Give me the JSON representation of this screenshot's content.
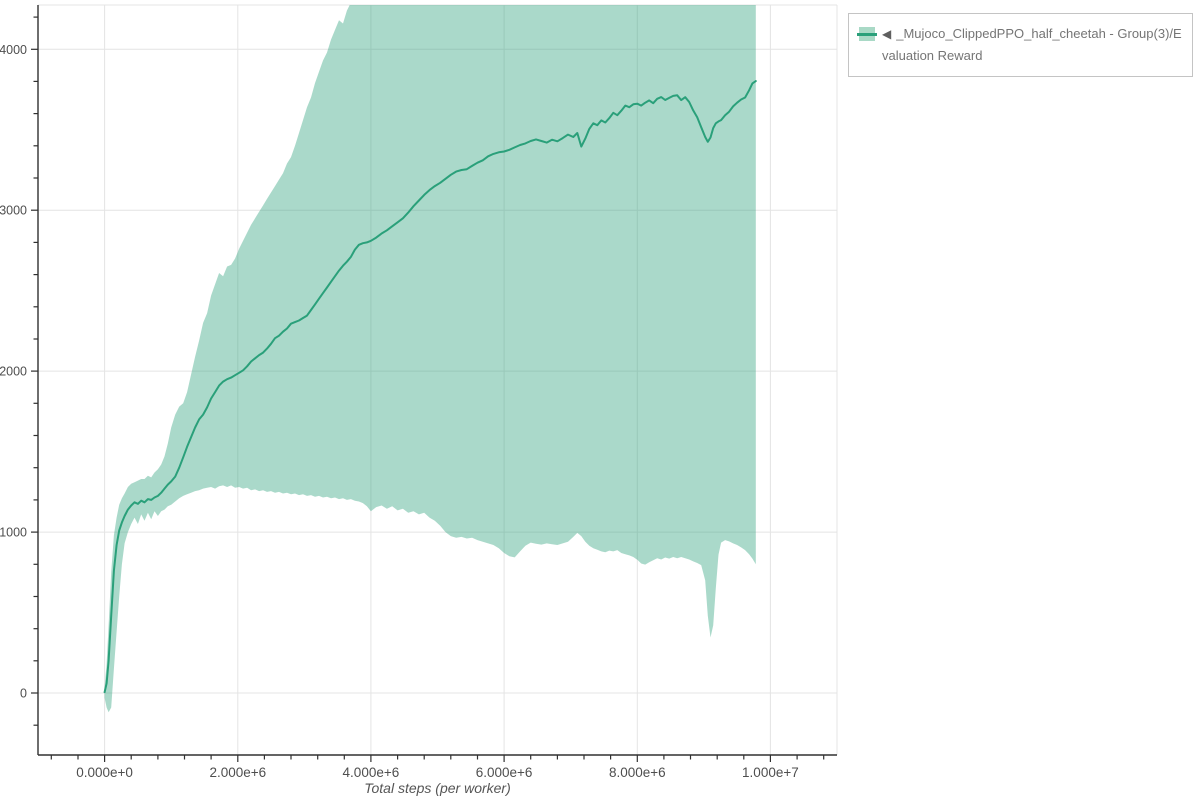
{
  "page": {
    "background": "#ffffff"
  },
  "legend": {
    "marker": "◀",
    "label": "_Mujoco_ClippedPPO_half_cheetah - Group(3)/Evaluation Reward",
    "swatch_band_color": "#a9d9c6",
    "swatch_line_color": "#2aa07a",
    "border_color": "#c4c4c4",
    "text_color": "#757575"
  },
  "chart_data": {
    "type": "line",
    "title": "",
    "xlabel": "Total steps (per worker)",
    "ylabel": "",
    "series_name": "_Mujoco_ClippedPPO_half_cheetah - Group(3)/Evaluation Reward",
    "line_color": "#2aa07a",
    "band_color": "#2aa07a",
    "band_opacity": 0.4,
    "grid": true,
    "legend_position": "top-right-outside",
    "xlim": [
      -1000000,
      11000000
    ],
    "ylim": [
      -385,
      4275
    ],
    "x_major_ticks": {
      "values": [
        0,
        2000000,
        4000000,
        6000000,
        8000000,
        10000000
      ],
      "labels": [
        "0.000e+0",
        "2.000e+6",
        "4.000e+6",
        "6.000e+6",
        "8.000e+6",
        "1.000e+7"
      ]
    },
    "x_minor_step": 400000,
    "y_major_ticks": {
      "values": [
        0,
        1000,
        2000,
        3000,
        4000
      ],
      "labels": [
        "0",
        "1000",
        "2000",
        "3000",
        "4000"
      ]
    },
    "y_minor_step": 200,
    "points_format": [
      "steps",
      "mean_reward",
      "band_low",
      "band_high"
    ],
    "points": [
      [
        0,
        5,
        -30,
        40
      ],
      [
        30000,
        60,
        -90,
        180
      ],
      [
        60000,
        200,
        -120,
        420
      ],
      [
        100000,
        480,
        -90,
        750
      ],
      [
        140000,
        760,
        150,
        980
      ],
      [
        180000,
        920,
        380,
        1090
      ],
      [
        220000,
        1010,
        600,
        1170
      ],
      [
        260000,
        1060,
        800,
        1210
      ],
      [
        300000,
        1100,
        930,
        1240
      ],
      [
        350000,
        1140,
        1000,
        1280
      ],
      [
        400000,
        1165,
        1050,
        1300
      ],
      [
        450000,
        1185,
        1090,
        1310
      ],
      [
        500000,
        1175,
        1050,
        1320
      ],
      [
        550000,
        1195,
        1110,
        1330
      ],
      [
        600000,
        1185,
        1070,
        1330
      ],
      [
        650000,
        1205,
        1120,
        1350
      ],
      [
        700000,
        1200,
        1080,
        1340
      ],
      [
        750000,
        1215,
        1130,
        1370
      ],
      [
        800000,
        1225,
        1100,
        1390
      ],
      [
        850000,
        1245,
        1130,
        1420
      ],
      [
        900000,
        1270,
        1140,
        1470
      ],
      [
        950000,
        1295,
        1160,
        1550
      ],
      [
        1000000,
        1315,
        1170,
        1650
      ],
      [
        1060000,
        1345,
        1190,
        1730
      ],
      [
        1120000,
        1400,
        1210,
        1780
      ],
      [
        1180000,
        1465,
        1225,
        1800
      ],
      [
        1240000,
        1530,
        1235,
        1870
      ],
      [
        1300000,
        1590,
        1245,
        1980
      ],
      [
        1360000,
        1650,
        1255,
        2090
      ],
      [
        1420000,
        1700,
        1260,
        2190
      ],
      [
        1480000,
        1730,
        1270,
        2300
      ],
      [
        1540000,
        1775,
        1275,
        2360
      ],
      [
        1600000,
        1830,
        1280,
        2470
      ],
      [
        1660000,
        1870,
        1270,
        2540
      ],
      [
        1720000,
        1910,
        1285,
        2610
      ],
      [
        1780000,
        1935,
        1290,
        2590
      ],
      [
        1840000,
        1950,
        1280,
        2650
      ],
      [
        1900000,
        1960,
        1290,
        2660
      ],
      [
        1960000,
        1975,
        1275,
        2700
      ],
      [
        2020000,
        1990,
        1280,
        2760
      ],
      [
        2080000,
        2005,
        1270,
        2810
      ],
      [
        2140000,
        2030,
        1275,
        2860
      ],
      [
        2200000,
        2060,
        1260,
        2910
      ],
      [
        2260000,
        2080,
        1265,
        2950
      ],
      [
        2320000,
        2100,
        1255,
        2990
      ],
      [
        2380000,
        2115,
        1260,
        3030
      ],
      [
        2440000,
        2140,
        1250,
        3070
      ],
      [
        2500000,
        2170,
        1255,
        3110
      ],
      [
        2560000,
        2205,
        1245,
        3150
      ],
      [
        2620000,
        2220,
        1250,
        3190
      ],
      [
        2680000,
        2245,
        1240,
        3230
      ],
      [
        2740000,
        2265,
        1245,
        3290
      ],
      [
        2800000,
        2295,
        1235,
        3330
      ],
      [
        2860000,
        2305,
        1240,
        3400
      ],
      [
        2920000,
        2315,
        1230,
        3480
      ],
      [
        2980000,
        2330,
        1235,
        3560
      ],
      [
        3040000,
        2345,
        1225,
        3640
      ],
      [
        3100000,
        2380,
        1230,
        3700
      ],
      [
        3160000,
        2415,
        1220,
        3790
      ],
      [
        3220000,
        2450,
        1225,
        3860
      ],
      [
        3280000,
        2485,
        1215,
        3930
      ],
      [
        3340000,
        2520,
        1220,
        3980
      ],
      [
        3400000,
        2555,
        1210,
        4060
      ],
      [
        3460000,
        2590,
        1215,
        4120
      ],
      [
        3520000,
        2625,
        1205,
        4180
      ],
      [
        3580000,
        2655,
        1210,
        4160
      ],
      [
        3640000,
        2680,
        1200,
        4240
      ],
      [
        3700000,
        2710,
        1205,
        4290
      ],
      [
        3760000,
        2755,
        1195,
        4350
      ],
      [
        3820000,
        2785,
        1190,
        4400
      ],
      [
        3880000,
        2795,
        1180,
        4400
      ],
      [
        3940000,
        2800,
        1160,
        4400
      ],
      [
        4000000,
        2810,
        1130,
        4400
      ],
      [
        4080000,
        2830,
        1155,
        4400
      ],
      [
        4160000,
        2855,
        1165,
        4400
      ],
      [
        4240000,
        2875,
        1145,
        4400
      ],
      [
        4320000,
        2900,
        1160,
        4400
      ],
      [
        4400000,
        2925,
        1135,
        4400
      ],
      [
        4480000,
        2950,
        1145,
        4400
      ],
      [
        4560000,
        2985,
        1120,
        4400
      ],
      [
        4640000,
        3025,
        1130,
        4400
      ],
      [
        4720000,
        3060,
        1110,
        4400
      ],
      [
        4800000,
        3095,
        1120,
        4400
      ],
      [
        4880000,
        3125,
        1090,
        4400
      ],
      [
        4960000,
        3150,
        1070,
        4400
      ],
      [
        5040000,
        3170,
        1040,
        4400
      ],
      [
        5120000,
        3195,
        1000,
        4400
      ],
      [
        5200000,
        3220,
        975,
        4400
      ],
      [
        5280000,
        3240,
        965,
        4400
      ],
      [
        5360000,
        3250,
        970,
        4400
      ],
      [
        5440000,
        3255,
        960,
        4400
      ],
      [
        5520000,
        3275,
        965,
        4400
      ],
      [
        5600000,
        3295,
        950,
        4400
      ],
      [
        5680000,
        3310,
        940,
        4400
      ],
      [
        5760000,
        3335,
        930,
        4400
      ],
      [
        5840000,
        3350,
        920,
        4400
      ],
      [
        5920000,
        3360,
        900,
        4400
      ],
      [
        6000000,
        3365,
        870,
        4400
      ],
      [
        6080000,
        3375,
        850,
        4400
      ],
      [
        6160000,
        3390,
        843,
        4400
      ],
      [
        6240000,
        3405,
        880,
        4400
      ],
      [
        6320000,
        3415,
        915,
        4400
      ],
      [
        6400000,
        3430,
        935,
        4400
      ],
      [
        6480000,
        3440,
        928,
        4400
      ],
      [
        6560000,
        3430,
        922,
        4400
      ],
      [
        6640000,
        3420,
        930,
        4400
      ],
      [
        6720000,
        3438,
        925,
        4400
      ],
      [
        6800000,
        3428,
        920,
        4400
      ],
      [
        6880000,
        3448,
        930,
        4400
      ],
      [
        6960000,
        3470,
        940,
        4400
      ],
      [
        7040000,
        3455,
        970,
        4400
      ],
      [
        7100000,
        3480,
        995,
        4400
      ],
      [
        7160000,
        3395,
        975,
        4400
      ],
      [
        7220000,
        3445,
        940,
        4400
      ],
      [
        7280000,
        3505,
        915,
        4400
      ],
      [
        7340000,
        3540,
        900,
        4400
      ],
      [
        7400000,
        3528,
        890,
        4400
      ],
      [
        7460000,
        3558,
        880,
        4400
      ],
      [
        7520000,
        3545,
        875,
        4400
      ],
      [
        7580000,
        3572,
        885,
        4400
      ],
      [
        7640000,
        3605,
        880,
        4400
      ],
      [
        7700000,
        3590,
        888,
        4400
      ],
      [
        7760000,
        3618,
        870,
        4400
      ],
      [
        7820000,
        3650,
        862,
        4400
      ],
      [
        7880000,
        3640,
        855,
        4400
      ],
      [
        7940000,
        3658,
        845,
        4400
      ],
      [
        8000000,
        3662,
        828,
        4400
      ],
      [
        8060000,
        3650,
        805,
        4400
      ],
      [
        8120000,
        3668,
        798,
        4400
      ],
      [
        8180000,
        3682,
        812,
        4400
      ],
      [
        8240000,
        3665,
        825,
        4400
      ],
      [
        8300000,
        3692,
        838,
        4400
      ],
      [
        8360000,
        3703,
        830,
        4400
      ],
      [
        8420000,
        3685,
        842,
        4400
      ],
      [
        8480000,
        3698,
        835,
        4400
      ],
      [
        8540000,
        3710,
        845,
        4400
      ],
      [
        8600000,
        3714,
        838,
        4400
      ],
      [
        8660000,
        3684,
        845,
        4400
      ],
      [
        8720000,
        3702,
        838,
        4400
      ],
      [
        8780000,
        3672,
        830,
        4400
      ],
      [
        8840000,
        3620,
        818,
        4400
      ],
      [
        8900000,
        3578,
        808,
        4400
      ],
      [
        8960000,
        3516,
        795,
        4400
      ],
      [
        9020000,
        3455,
        700,
        4400
      ],
      [
        9060000,
        3425,
        480,
        4400
      ],
      [
        9100000,
        3452,
        345,
        4400
      ],
      [
        9140000,
        3510,
        420,
        4400
      ],
      [
        9180000,
        3540,
        650,
        4400
      ],
      [
        9220000,
        3552,
        860,
        4400
      ],
      [
        9260000,
        3560,
        935,
        4400
      ],
      [
        9320000,
        3590,
        950,
        4400
      ],
      [
        9380000,
        3612,
        942,
        4400
      ],
      [
        9440000,
        3645,
        930,
        4400
      ],
      [
        9500000,
        3668,
        920,
        4400
      ],
      [
        9560000,
        3688,
        905,
        4400
      ],
      [
        9620000,
        3700,
        888,
        4400
      ],
      [
        9680000,
        3745,
        862,
        4400
      ],
      [
        9730000,
        3788,
        835,
        4400
      ],
      [
        9780000,
        3802,
        800,
        4400
      ]
    ]
  }
}
